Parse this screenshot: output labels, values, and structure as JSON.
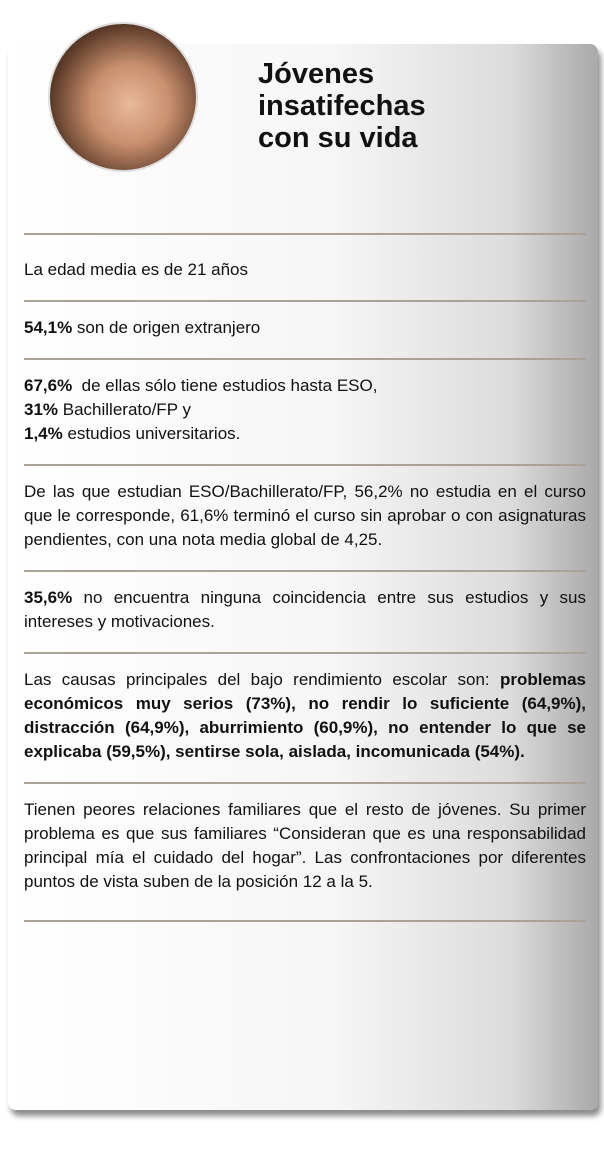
{
  "header": {
    "title_lines": [
      "Jóvenes",
      "insatifechas",
      "con su vida"
    ]
  },
  "sections": [
    {
      "runs": [
        {
          "text": "La edad media es de 21 años"
        }
      ]
    },
    {
      "runs": [
        {
          "text": "54,1%",
          "bold": true
        },
        {
          "text": " son de origen extranjero"
        }
      ]
    },
    {
      "runs": [
        {
          "text": "67,6%",
          "bold": true
        },
        {
          "text": "  de ellas sólo tiene estudios hasta ESO,",
          "break": true
        },
        {
          "text": "31%",
          "bold": true
        },
        {
          "text": " Bachillerato/FP y",
          "break": true
        },
        {
          "text": "1,4%",
          "bold": true
        },
        {
          "text": " estudios universitarios."
        }
      ]
    },
    {
      "runs": [
        {
          "text": "De las que estudian ESO/Bachillerato/FP, 56,2% no estudia en el curso que le corresponde, 61,6% terminó el curso sin aprobar o con asignaturas pendientes, con una nota media global de 4,25."
        }
      ]
    },
    {
      "runs": [
        {
          "text": "35,6%",
          "bold": true
        },
        {
          "text": " no encuentra ninguna coincidencia entre sus estudios y sus intereses y motivaciones."
        }
      ]
    },
    {
      "runs": [
        {
          "text": "Las causas principales del bajo rendimiento escolar son: "
        },
        {
          "text": "problemas económicos muy serios (73%), no rendir lo suficiente (64,9%), distracción (64,9%), aburrimiento (60,9%), no entender lo que se explicaba (59,5%), sentirse sola, aislada, incomunicada (54%).",
          "bold": true
        }
      ]
    },
    {
      "runs": [
        {
          "text": "Tienen peores relaciones familiares que el resto de jóvenes. Su primer problema es que sus familiares “Consideran que es una responsabilidad principal mía el cuidado del hogar”. Las confrontaciones por diferentes puntos de vista suben de la posición 12 a la 5."
        }
      ]
    }
  ]
}
